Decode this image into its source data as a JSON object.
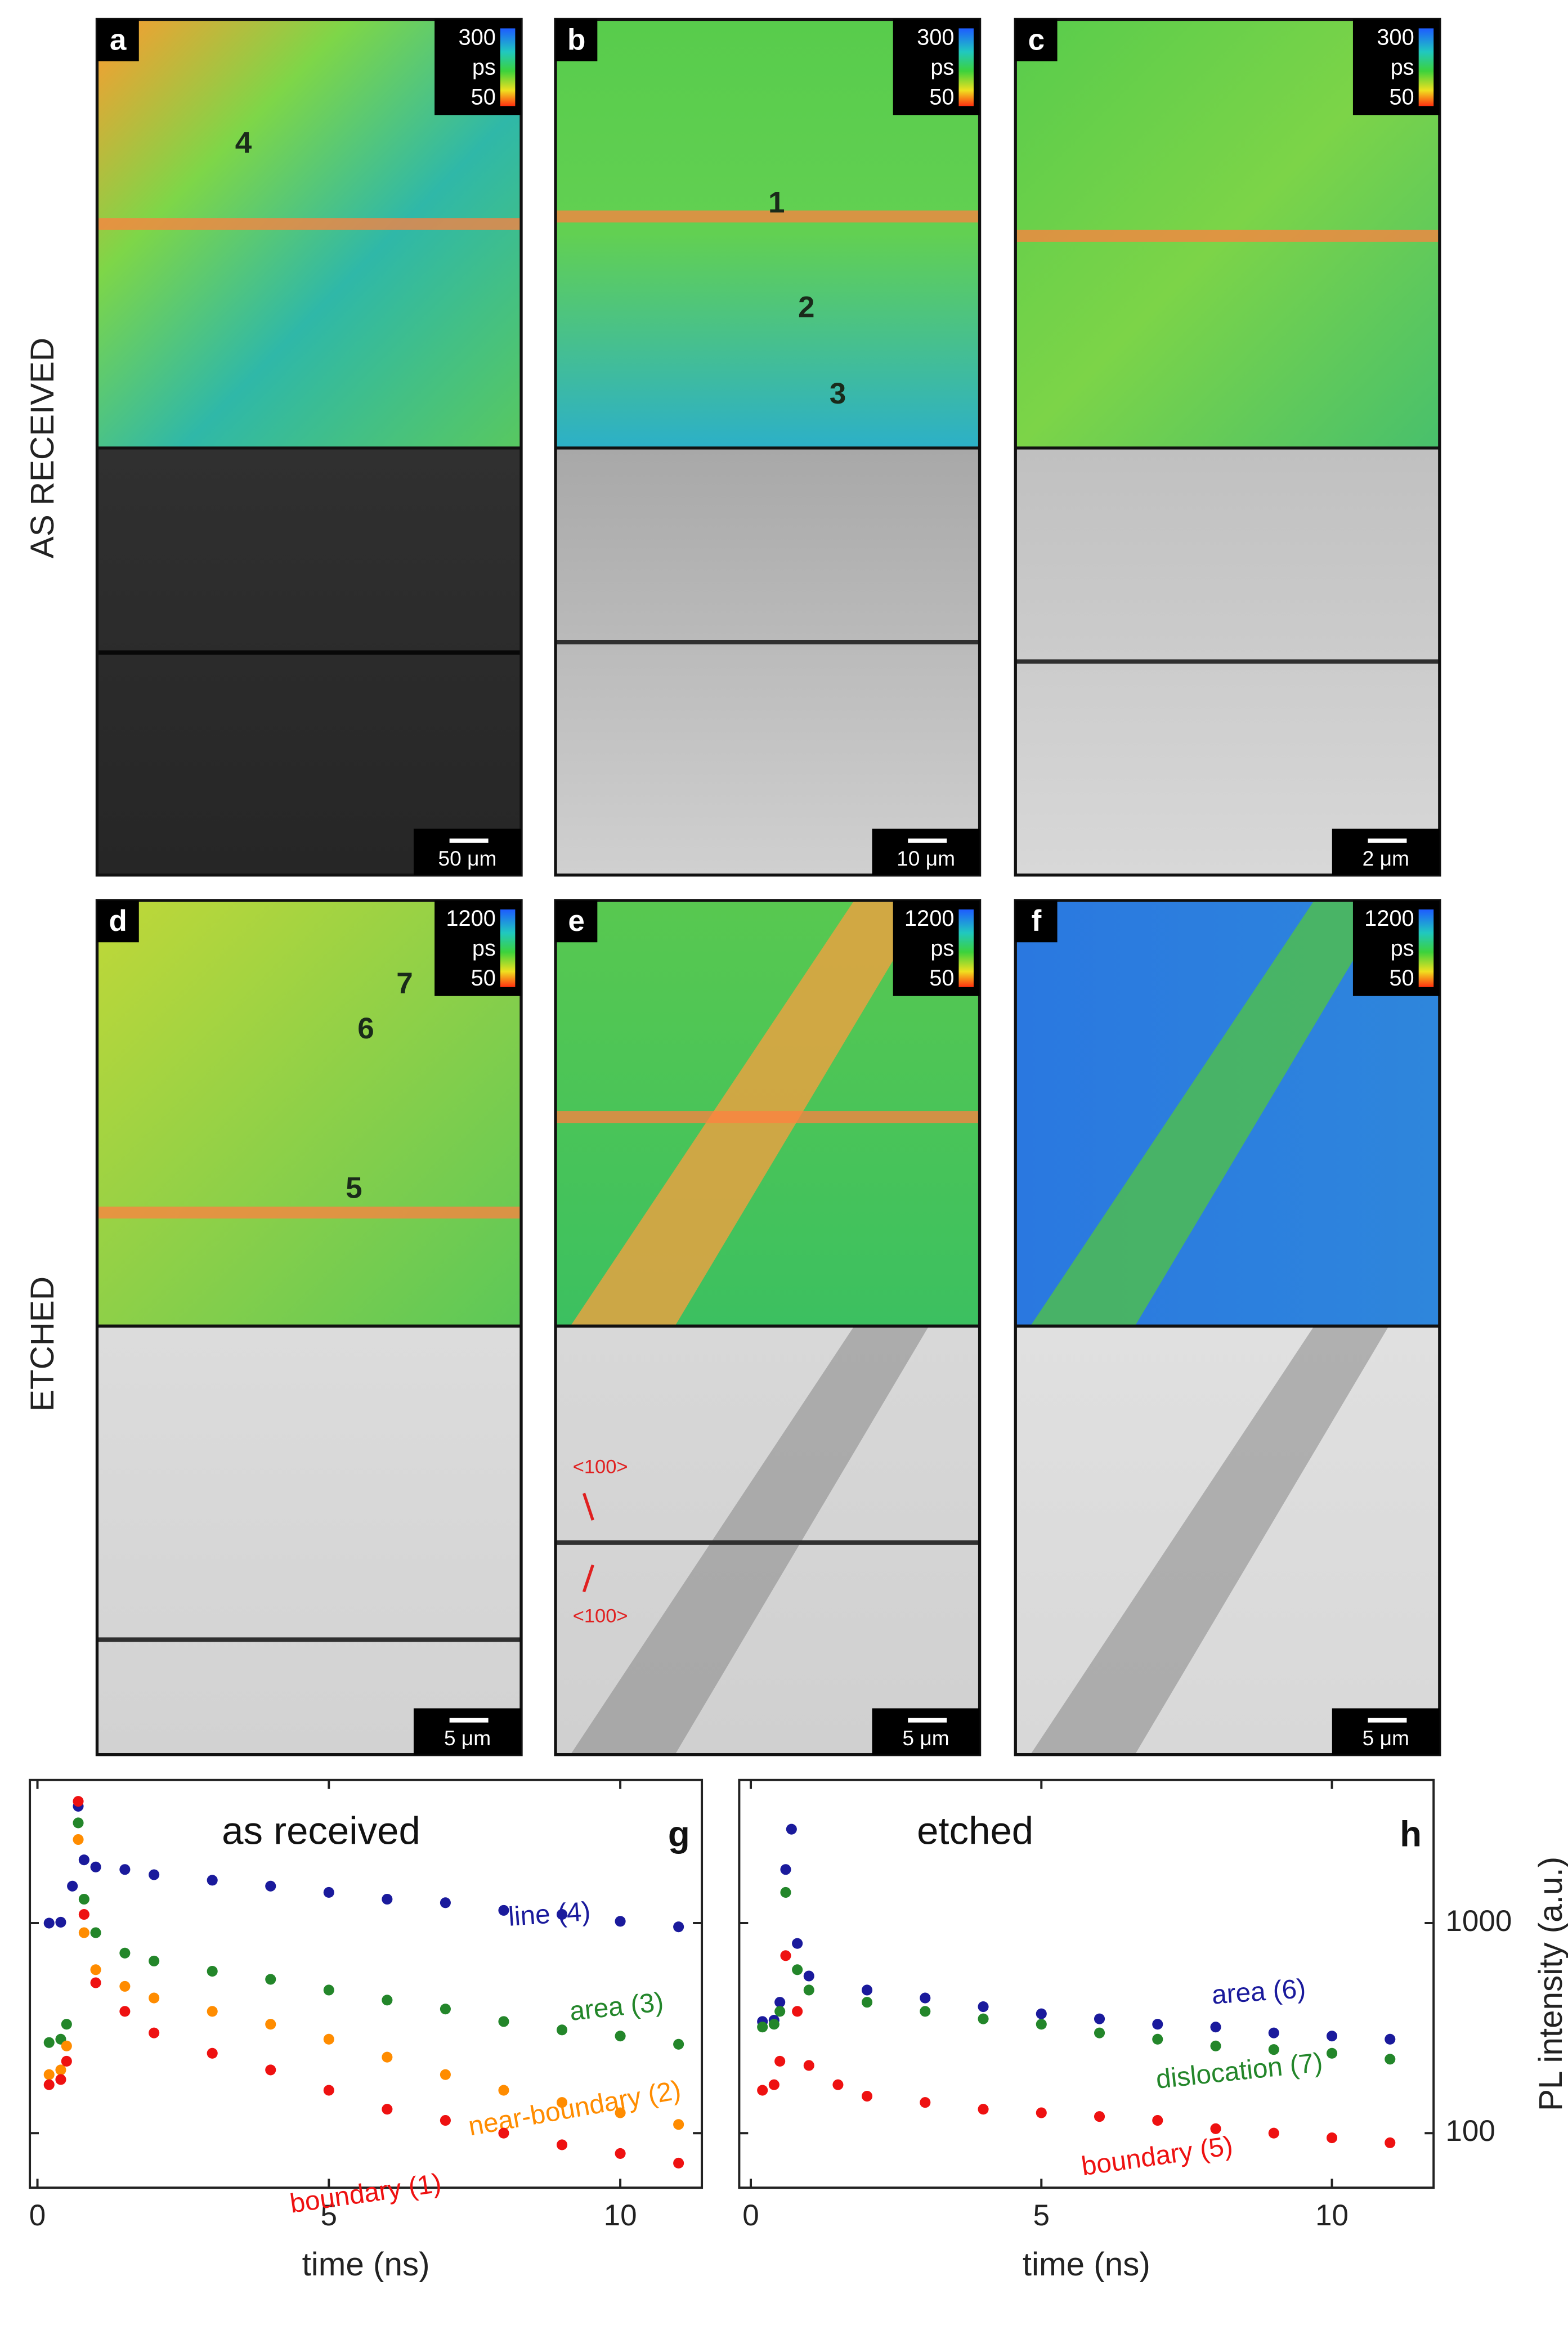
{
  "panels": [
    {
      "label": "a",
      "colorbar_max": 300,
      "colorbar_unit": "ps",
      "colorbar_min": 50,
      "scale_bar": "50 μm"
    },
    {
      "label": "b",
      "colorbar_max": 300,
      "colorbar_unit": "ps",
      "colorbar_min": 50,
      "scale_bar": "10 μm"
    },
    {
      "label": "c",
      "colorbar_max": 300,
      "colorbar_unit": "ps",
      "colorbar_min": 50,
      "scale_bar": "2 μm"
    },
    {
      "label": "d",
      "colorbar_max": 1200,
      "colorbar_unit": "ps",
      "colorbar_min": 50,
      "scale_bar": "5 μm"
    },
    {
      "label": "e",
      "colorbar_max": 1200,
      "colorbar_unit": "ps",
      "colorbar_min": 50,
      "scale_bar": "5 μm"
    },
    {
      "label": "f",
      "colorbar_max": 1200,
      "colorbar_unit": "ps",
      "colorbar_min": 50,
      "scale_bar": "5 μm"
    }
  ],
  "row_labels": [
    "AS RECEIVED",
    "ETCHED"
  ],
  "spot_labels": [
    "4",
    "1",
    "2",
    "3",
    "7",
    "6",
    "5"
  ],
  "direction_labels": [
    "<100>",
    "<100>"
  ],
  "chart_data": [
    {
      "type": "scatter",
      "title": "as received",
      "panel_label": "g",
      "xlabel": "time (ns)",
      "xlim": [
        -0.13,
        11.4
      ],
      "xticks": [
        0,
        5,
        10
      ],
      "ylim": [
        55,
        4800
      ],
      "yscale": "log",
      "yticks": [
        100,
        1000
      ],
      "show_ytick_labels": false,
      "series": [
        {
          "name": "line (4)",
          "color": "#1a1a9c",
          "x": [
            0.2,
            0.4,
            0.6,
            0.7,
            0.8,
            1,
            1.5,
            2,
            3,
            4,
            5,
            6,
            7,
            8,
            9,
            10,
            11
          ],
          "values": [
            1000,
            1010,
            1500,
            3600,
            2000,
            1850,
            1800,
            1700,
            1600,
            1500,
            1400,
            1300,
            1250,
            1150,
            1100,
            1020,
            960
          ]
        },
        {
          "name": "area (3)",
          "color": "#23862a",
          "x": [
            0.2,
            0.4,
            0.5,
            0.7,
            0.8,
            1,
            1.5,
            2,
            3,
            4,
            5,
            6,
            7,
            8,
            9,
            10,
            11
          ],
          "values": [
            270,
            280,
            330,
            3000,
            1300,
            900,
            720,
            660,
            590,
            540,
            480,
            430,
            390,
            340,
            310,
            290,
            265
          ]
        },
        {
          "name": "near-boundary (2)",
          "color": "#ff8c00",
          "x": [
            0.2,
            0.4,
            0.5,
            0.7,
            0.8,
            1,
            1.5,
            2,
            3,
            4,
            5,
            6,
            7,
            8,
            9,
            10,
            11
          ],
          "values": [
            190,
            200,
            260,
            2500,
            900,
            600,
            500,
            440,
            380,
            330,
            280,
            230,
            190,
            160,
            140,
            125,
            110
          ]
        },
        {
          "name": "boundary (1)",
          "color": "#ee1111",
          "x": [
            0.2,
            0.4,
            0.5,
            0.7,
            0.8,
            1,
            1.5,
            2,
            3,
            4,
            5,
            6,
            7,
            8,
            9,
            10,
            11
          ],
          "values": [
            170,
            180,
            220,
            3800,
            1100,
            520,
            380,
            300,
            240,
            200,
            160,
            130,
            115,
            100,
            88,
            80,
            72
          ]
        }
      ]
    },
    {
      "type": "scatter",
      "title": "etched",
      "panel_label": "h",
      "xlabel": "time (ns)",
      "ylabel": "PL intensity (a.u.)",
      "xlim": [
        -0.2,
        11.75
      ],
      "xticks": [
        0,
        5,
        10
      ],
      "ylim": [
        55,
        4800
      ],
      "yscale": "log",
      "yticks": [
        100,
        1000
      ],
      "show_ytick_labels": true,
      "series": [
        {
          "name": "area (6)",
          "color": "#1a1a9c",
          "x": [
            0.2,
            0.4,
            0.5,
            0.6,
            0.7,
            0.8,
            1,
            2,
            3,
            4,
            5,
            6,
            7,
            8,
            9,
            10,
            11
          ],
          "values": [
            340,
            345,
            420,
            1800,
            2800,
            800,
            560,
            480,
            440,
            400,
            370,
            350,
            330,
            320,
            300,
            290,
            280
          ]
        },
        {
          "name": "dislocation (7)",
          "color": "#23862a",
          "x": [
            0.2,
            0.4,
            0.5,
            0.6,
            0.8,
            1,
            2,
            3,
            4,
            5,
            6,
            7,
            8,
            9,
            10,
            11
          ],
          "values": [
            320,
            330,
            380,
            1400,
            600,
            480,
            420,
            380,
            350,
            330,
            300,
            280,
            260,
            250,
            240,
            225
          ]
        },
        {
          "name": "boundary (5)",
          "color": "#ee1111",
          "x": [
            0.2,
            0.4,
            0.5,
            0.6,
            0.8,
            1,
            1.5,
            2,
            3,
            4,
            5,
            6,
            7,
            8,
            9,
            10,
            11
          ],
          "values": [
            160,
            170,
            220,
            700,
            380,
            210,
            170,
            150,
            140,
            130,
            125,
            120,
            115,
            105,
            100,
            95,
            90
          ]
        }
      ]
    }
  ]
}
